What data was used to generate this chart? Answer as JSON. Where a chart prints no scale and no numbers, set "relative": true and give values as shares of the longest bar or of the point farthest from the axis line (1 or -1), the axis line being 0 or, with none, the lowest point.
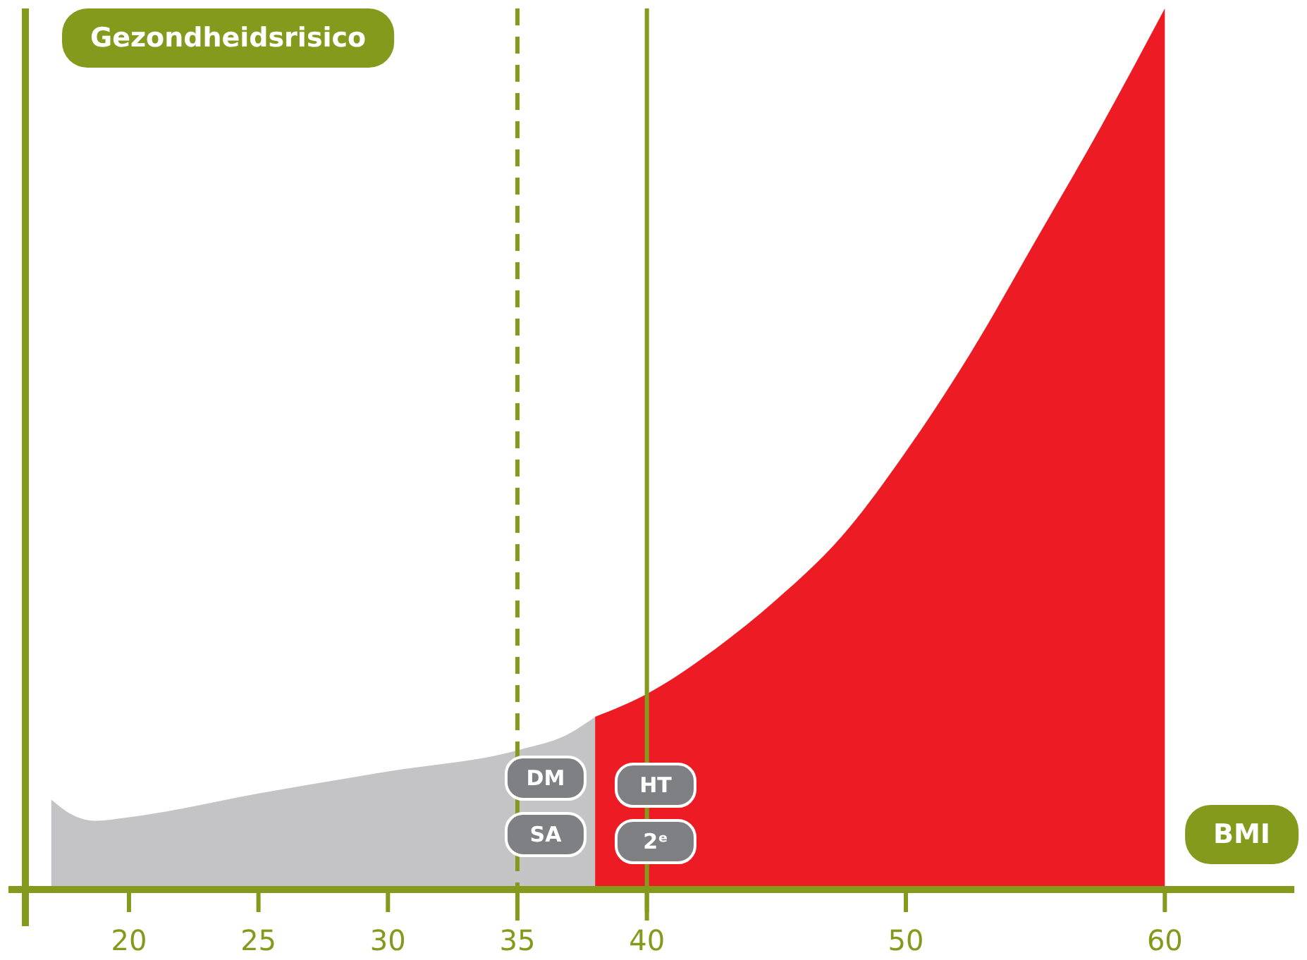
{
  "chart_data": {
    "type": "area",
    "relative": true,
    "ylabel": "Gezondheidsrisico",
    "xlabel": "BMI",
    "xlim": [
      16,
      65
    ],
    "xticks": [
      20,
      25,
      30,
      35,
      40,
      50,
      60
    ],
    "series": [
      {
        "color": "#c4c4c6",
        "x": [
          17,
          17.8,
          18.7,
          20,
          25,
          30,
          35,
          37,
          38
        ],
        "values": [
          0.102,
          0.085,
          0.078,
          0.082,
          0.109,
          0.134,
          0.158,
          0.177,
          0.196
        ]
      },
      {
        "color": "#ed1c24",
        "x": [
          38,
          40,
          42.5,
          45,
          47.5,
          50,
          52.5,
          55,
          57.5,
          60
        ],
        "values": [
          0.196,
          0.222,
          0.27,
          0.329,
          0.4,
          0.497,
          0.609,
          0.736,
          0.864,
          1.0
        ]
      }
    ],
    "ref_lines": [
      {
        "axis": "x",
        "value": 35,
        "color": "#849a1c",
        "line_style": "dashed"
      },
      {
        "axis": "x",
        "value": 40,
        "color": "#849a1c",
        "line_style": "solid"
      }
    ],
    "annotations": [
      "DM",
      "HT",
      "SA",
      "2ᵉ"
    ]
  }
}
